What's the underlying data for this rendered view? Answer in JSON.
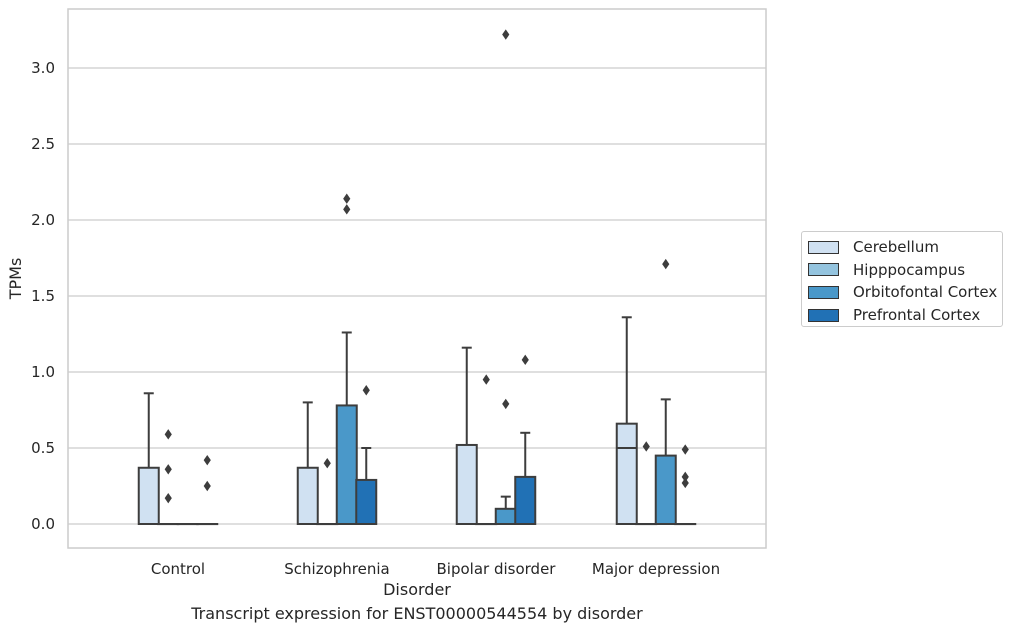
{
  "caption": "Transcript expression for ENST00000544554 by disorder",
  "chart_data": {
    "type": "box",
    "title": "",
    "xlabel": "Disorder",
    "ylabel": "TPMs",
    "ylim": [
      -0.155,
      3.385
    ],
    "yticks": [
      "0.0",
      "0.5",
      "1.0",
      "1.5",
      "2.0",
      "2.5",
      "3.0"
    ],
    "grid": "horizontal",
    "legend_position": "right",
    "categories": [
      "Control",
      "Schizophrenia",
      "Bipolar disorder",
      "Major depression"
    ],
    "series": [
      {
        "name": "Cerebellum",
        "color": "#d0e1f2",
        "boxes": [
          {
            "q1": 0.0,
            "median": 0.0,
            "q3": 0.37,
            "whisker_low": 0.0,
            "whisker_high": 0.86,
            "outliers": []
          },
          {
            "q1": 0.0,
            "median": 0.0,
            "q3": 0.37,
            "whisker_low": 0.0,
            "whisker_high": 0.8,
            "outliers": []
          },
          {
            "q1": 0.0,
            "median": 0.0,
            "q3": 0.52,
            "whisker_low": 0.0,
            "whisker_high": 1.16,
            "outliers": []
          },
          {
            "q1": 0.0,
            "median": 0.5,
            "q3": 0.66,
            "whisker_low": 0.0,
            "whisker_high": 1.36,
            "outliers": []
          }
        ]
      },
      {
        "name": "Hipppocampus",
        "color": "#94c4df",
        "boxes": [
          {
            "q1": 0.0,
            "median": 0.0,
            "q3": 0.0,
            "whisker_low": 0.0,
            "whisker_high": 0.0,
            "outliers": [
              0.17,
              0.36,
              0.59
            ]
          },
          {
            "q1": 0.0,
            "median": 0.0,
            "q3": 0.0,
            "whisker_low": 0.0,
            "whisker_high": 0.0,
            "outliers": [
              0.4
            ]
          },
          {
            "q1": 0.0,
            "median": 0.0,
            "q3": 0.0,
            "whisker_low": 0.0,
            "whisker_high": 0.0,
            "outliers": [
              0.95
            ]
          },
          {
            "q1": 0.0,
            "median": 0.0,
            "q3": 0.0,
            "whisker_low": 0.0,
            "whisker_high": 0.0,
            "outliers": [
              0.51
            ]
          }
        ]
      },
      {
        "name": "Orbitofontal Cortex",
        "color": "#4a98c9",
        "boxes": [
          {
            "q1": 0.0,
            "median": 0.0,
            "q3": 0.0,
            "whisker_low": 0.0,
            "whisker_high": 0.0,
            "outliers": []
          },
          {
            "q1": 0.0,
            "median": 0.0,
            "q3": 0.78,
            "whisker_low": 0.0,
            "whisker_high": 1.26,
            "outliers": [
              2.07,
              2.14
            ]
          },
          {
            "q1": 0.0,
            "median": 0.0,
            "q3": 0.1,
            "whisker_low": 0.0,
            "whisker_high": 0.18,
            "outliers": [
              0.79,
              3.22
            ]
          },
          {
            "q1": 0.0,
            "median": 0.0,
            "q3": 0.45,
            "whisker_low": 0.0,
            "whisker_high": 0.82,
            "outliers": [
              1.71
            ]
          }
        ]
      },
      {
        "name": "Prefrontal Cortex",
        "color": "#2171b5",
        "boxes": [
          {
            "q1": 0.0,
            "median": 0.0,
            "q3": 0.0,
            "whisker_low": 0.0,
            "whisker_high": 0.0,
            "outliers": [
              0.25,
              0.42
            ]
          },
          {
            "q1": 0.0,
            "median": 0.0,
            "q3": 0.29,
            "whisker_low": 0.0,
            "whisker_high": 0.5,
            "outliers": [
              0.88
            ]
          },
          {
            "q1": 0.0,
            "median": 0.0,
            "q3": 0.31,
            "whisker_low": 0.0,
            "whisker_high": 0.6,
            "outliers": [
              1.08
            ]
          },
          {
            "q1": 0.0,
            "median": 0.0,
            "q3": 0.0,
            "whisker_low": 0.0,
            "whisker_high": 0.0,
            "outliers": [
              0.27,
              0.31,
              0.49
            ]
          }
        ]
      }
    ]
  }
}
